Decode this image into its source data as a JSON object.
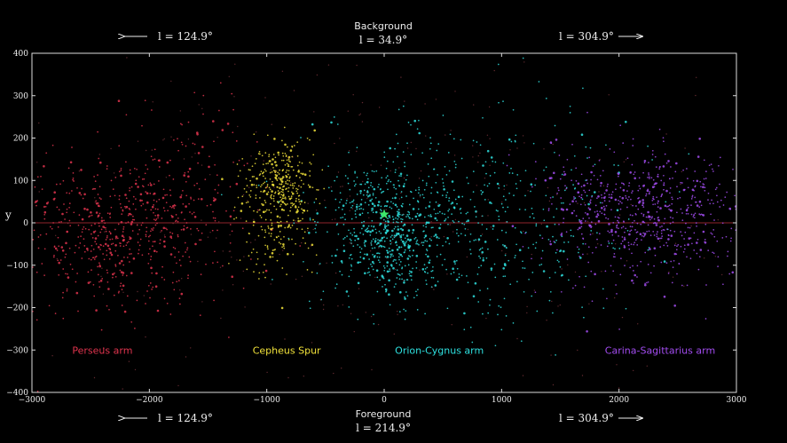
{
  "chart_data": {
    "type": "scatter",
    "xlim": [
      -3000,
      3000
    ],
    "ylim": [
      -400,
      400
    ],
    "x_ticks": [
      -3000,
      -2000,
      -1000,
      0,
      1000,
      2000,
      3000
    ],
    "y_ticks": [
      400,
      300,
      200,
      100,
      0,
      -100,
      -200,
      -300,
      -400
    ],
    "x_tick_labels": [
      "−3000",
      "−2000",
      "−1000",
      "0",
      "1000",
      "2000",
      "3000"
    ],
    "y_tick_labels": [
      "400",
      "300",
      "200",
      "100",
      "0",
      "−100",
      "−200",
      "−300",
      "−400"
    ],
    "ylabel": "y",
    "grid": false,
    "reference_line_y": 0,
    "sun_marker": {
      "x": 0,
      "y": 20
    },
    "top": {
      "center_title": "Background",
      "center_value": "l = 34.9°",
      "left_value": "l = 124.9°",
      "right_value": "l = 304.9°"
    },
    "bottom": {
      "center_title": "Foreground",
      "center_value": "l = 214.9°",
      "left_value": "l = 124.9°",
      "right_value": "l = 304.9°"
    },
    "series": [
      {
        "name": "Perseus arm",
        "color": "#e0344e",
        "label_x": -2400,
        "label_y": -300,
        "clusters": [
          {
            "cx": -2300,
            "cy": -20,
            "sx": 420,
            "sy": 90,
            "n": 520
          },
          {
            "cx": -1800,
            "cy": 60,
            "sx": 350,
            "sy": 110,
            "n": 160
          }
        ]
      },
      {
        "name": "Cepheus Spur",
        "color": "#f2e33a",
        "label_x": -830,
        "label_y": -300,
        "clusters": [
          {
            "cx": -880,
            "cy": 90,
            "sx": 160,
            "sy": 55,
            "n": 330
          },
          {
            "cx": -950,
            "cy": -40,
            "sx": 140,
            "sy": 50,
            "n": 90
          }
        ]
      },
      {
        "name": "Orion-Cygnus arm",
        "color": "#2ee0df",
        "label_x": 470,
        "label_y": -300,
        "clusters": [
          {
            "cx": 0,
            "cy": 0,
            "sx": 260,
            "sy": 70,
            "n": 420
          },
          {
            "cx": 700,
            "cy": 10,
            "sx": 650,
            "sy": 120,
            "n": 520
          },
          {
            "cx": 100,
            "cy": -80,
            "sx": 150,
            "sy": 60,
            "n": 110
          }
        ]
      },
      {
        "name": "Carina-Sagittarius arm",
        "color": "#a24cf0",
        "label_x": 2350,
        "label_y": -300,
        "clusters": [
          {
            "cx": 2350,
            "cy": 20,
            "sx": 380,
            "sy": 70,
            "n": 520
          },
          {
            "cx": 1800,
            "cy": 40,
            "sx": 300,
            "sy": 90,
            "n": 150
          }
        ]
      },
      {
        "name": "",
        "color": "#b04a55",
        "background": true,
        "clusters": [
          {
            "cx": 0,
            "cy": 0,
            "sx": 1700,
            "sy": 200,
            "n": 380
          }
        ]
      }
    ]
  }
}
